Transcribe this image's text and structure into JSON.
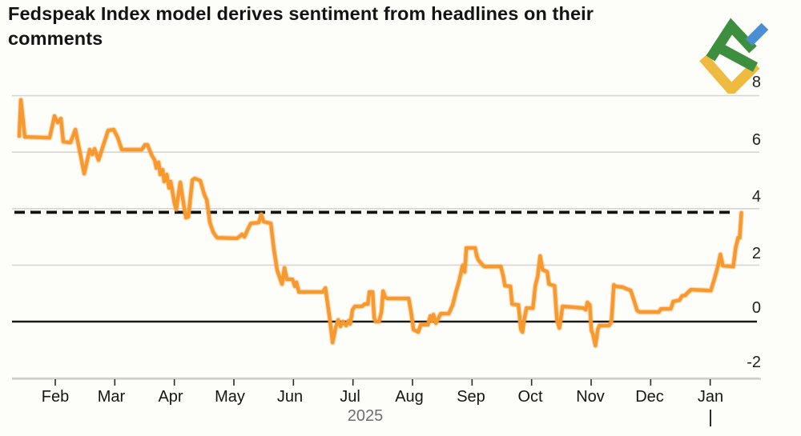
{
  "title": "Fedspeak Index model derives sentiment from headlines on their comments",
  "brand": {
    "name": "LiteFinance",
    "colors": {
      "green": "#3d8f3f",
      "yellow": "#eebb40",
      "blue": "#4a8fd5"
    }
  },
  "chart_data": {
    "type": "line",
    "title": "Fedspeak Index model derives sentiment from headlines on their comments",
    "xlabel": "",
    "ylabel": "",
    "x_ticks": [
      "Feb",
      "Mar",
      "Apr",
      "May",
      "Jun",
      "Jul",
      "Aug",
      "Sep",
      "Oct",
      "Nov",
      "Dec",
      "Jan"
    ],
    "year_label": "2025",
    "y_tick_labels": [
      "8",
      "6",
      "4",
      "2",
      "0",
      "-2"
    ],
    "y_tick_values": [
      8,
      6,
      4,
      2,
      0,
      -2
    ],
    "y_gridline_values": [
      8,
      6,
      4,
      2,
      -2
    ],
    "zero_line_value": 0,
    "dashed_line_value": 3.87,
    "ylim": [
      -2.3,
      8.4
    ],
    "grid": "horizontal-only",
    "legend": "none",
    "line_color": "#f7992e",
    "series": [
      {
        "name": "Fedspeak Index",
        "x_unit": "month position (Feb 2025 = 1 ... Jan 2026 = 12)",
        "points": [
          [
            0.394,
            6.57
          ],
          [
            0.421,
            7.85
          ],
          [
            0.489,
            6.54
          ],
          [
            0.906,
            6.51
          ],
          [
            0.987,
            7.28
          ],
          [
            1.04,
            7.05
          ],
          [
            1.094,
            7.19
          ],
          [
            1.135,
            6.37
          ],
          [
            1.256,
            6.34
          ],
          [
            1.337,
            6.8
          ],
          [
            1.485,
            5.24
          ],
          [
            1.579,
            6.09
          ],
          [
            1.619,
            5.92
          ],
          [
            1.659,
            6.12
          ],
          [
            1.727,
            5.72
          ],
          [
            1.888,
            6.77
          ],
          [
            1.982,
            6.8
          ],
          [
            2.05,
            6.51
          ],
          [
            2.117,
            6.09
          ],
          [
            2.453,
            6.09
          ],
          [
            2.507,
            6.26
          ],
          [
            2.548,
            6.26
          ],
          [
            2.588,
            6.06
          ],
          [
            2.628,
            5.86
          ],
          [
            2.669,
            5.72
          ],
          [
            2.696,
            5.44
          ],
          [
            2.736,
            5.64
          ],
          [
            2.763,
            5.21
          ],
          [
            2.803,
            5.38
          ],
          [
            2.83,
            4.96
          ],
          [
            2.871,
            5.21
          ],
          [
            2.911,
            4.73
          ],
          [
            2.938,
            4.96
          ],
          [
            3.005,
            4.16
          ],
          [
            3.032,
            3.97
          ],
          [
            3.1,
            4.93
          ],
          [
            3.14,
            4.36
          ],
          [
            3.194,
            3.68
          ],
          [
            3.234,
            3.71
          ],
          [
            3.302,
            5.01
          ],
          [
            3.342,
            5.07
          ],
          [
            3.436,
            4.99
          ],
          [
            3.503,
            4.5
          ],
          [
            3.544,
            4.31
          ],
          [
            3.597,
            3.51
          ],
          [
            3.651,
            3.17
          ],
          [
            3.719,
            2.97
          ],
          [
            4.055,
            2.95
          ],
          [
            4.136,
            3.09
          ],
          [
            4.176,
            3.0
          ],
          [
            4.244,
            3.31
          ],
          [
            4.284,
            3.48
          ],
          [
            4.418,
            3.51
          ],
          [
            4.459,
            3.8
          ],
          [
            4.499,
            3.54
          ],
          [
            4.62,
            3.48
          ],
          [
            4.674,
            2.52
          ],
          [
            4.728,
            1.81
          ],
          [
            4.809,
            1.33
          ],
          [
            4.849,
            1.9
          ],
          [
            4.89,
            1.5
          ],
          [
            4.984,
            1.5
          ],
          [
            5.024,
            1.25
          ],
          [
            5.051,
            1.39
          ],
          [
            5.091,
            1.05
          ],
          [
            5.495,
            1.05
          ],
          [
            5.536,
            1.19
          ],
          [
            5.603,
            0.2
          ],
          [
            5.657,
            -0.74
          ],
          [
            5.71,
            -0.2
          ],
          [
            5.751,
            0.06
          ],
          [
            5.791,
            -0.17
          ],
          [
            5.832,
            0.0
          ],
          [
            5.885,
            -0.14
          ],
          [
            5.926,
            0.03
          ],
          [
            5.953,
            -0.08
          ],
          [
            5.993,
            0.42
          ],
          [
            6.033,
            0.54
          ],
          [
            6.154,
            0.54
          ],
          [
            6.195,
            0.62
          ],
          [
            6.249,
            0.62
          ],
          [
            6.276,
            1.05
          ],
          [
            6.33,
            1.05
          ],
          [
            6.356,
            0.14
          ],
          [
            6.383,
            0.0
          ],
          [
            6.437,
            0.0
          ],
          [
            6.478,
            0.34
          ],
          [
            6.505,
            1.08
          ],
          [
            6.545,
            0.85
          ],
          [
            6.585,
            0.82
          ],
          [
            6.935,
            0.82
          ],
          [
            6.976,
            0.34
          ],
          [
            7.016,
            -0.28
          ],
          [
            7.097,
            -0.37
          ],
          [
            7.137,
            -0.11
          ],
          [
            7.258,
            -0.11
          ],
          [
            7.299,
            0.2
          ],
          [
            7.325,
            0.03
          ],
          [
            7.352,
            0.25
          ],
          [
            7.393,
            -0.06
          ],
          [
            7.433,
            0.11
          ],
          [
            7.473,
            0.28
          ],
          [
            7.608,
            0.28
          ],
          [
            7.675,
            0.59
          ],
          [
            7.729,
            1.05
          ],
          [
            7.783,
            1.44
          ],
          [
            7.837,
            1.95
          ],
          [
            7.85,
            2.0
          ],
          [
            7.877,
            1.76
          ],
          [
            7.904,
            2.61
          ],
          [
            8.052,
            2.61
          ],
          [
            8.079,
            2.32
          ],
          [
            8.106,
            2.18
          ],
          [
            8.187,
            1.98
          ],
          [
            8.214,
            1.95
          ],
          [
            8.483,
            1.95
          ],
          [
            8.524,
            1.61
          ],
          [
            8.551,
            1.27
          ],
          [
            8.645,
            1.25
          ],
          [
            8.672,
            0.62
          ],
          [
            8.779,
            0.59
          ],
          [
            8.82,
            -0.28
          ],
          [
            8.847,
            -0.37
          ],
          [
            8.874,
            0.06
          ],
          [
            8.914,
            0.48
          ],
          [
            9.022,
            0.48
          ],
          [
            9.062,
            1.27
          ],
          [
            9.103,
            1.61
          ],
          [
            9.143,
            2.32
          ],
          [
            9.183,
            1.84
          ],
          [
            9.264,
            1.76
          ],
          [
            9.291,
            1.33
          ],
          [
            9.385,
            1.27
          ],
          [
            9.425,
            0.06
          ],
          [
            9.466,
            -0.23
          ],
          [
            9.52,
            0.54
          ],
          [
            9.869,
            0.48
          ],
          [
            9.91,
            0.42
          ],
          [
            9.937,
            0.68
          ],
          [
            9.977,
            0.59
          ],
          [
            10.004,
            -0.31
          ],
          [
            10.031,
            -0.45
          ],
          [
            10.071,
            -0.85
          ],
          [
            10.112,
            -0.28
          ],
          [
            10.139,
            -0.14
          ],
          [
            10.3,
            -0.14
          ],
          [
            10.341,
            0.0
          ],
          [
            10.381,
            1.3
          ],
          [
            10.408,
            1.25
          ],
          [
            10.529,
            1.22
          ],
          [
            10.664,
            1.1
          ],
          [
            10.718,
            0.76
          ],
          [
            10.771,
            0.4
          ],
          [
            10.812,
            0.34
          ],
          [
            11.135,
            0.34
          ],
          [
            11.175,
            0.45
          ],
          [
            11.337,
            0.45
          ],
          [
            11.377,
            0.71
          ],
          [
            11.485,
            0.76
          ],
          [
            11.525,
            0.91
          ],
          [
            11.579,
            0.93
          ],
          [
            11.619,
            1.02
          ],
          [
            11.673,
            1.13
          ],
          [
            12.01,
            1.1
          ],
          [
            12.077,
            1.56
          ],
          [
            12.131,
            1.98
          ],
          [
            12.171,
            2.38
          ],
          [
            12.212,
            1.98
          ],
          [
            12.387,
            1.95
          ],
          [
            12.427,
            2.61
          ],
          [
            12.468,
            2.97
          ],
          [
            12.495,
            2.97
          ],
          [
            12.522,
            3.85
          ]
        ]
      }
    ]
  }
}
